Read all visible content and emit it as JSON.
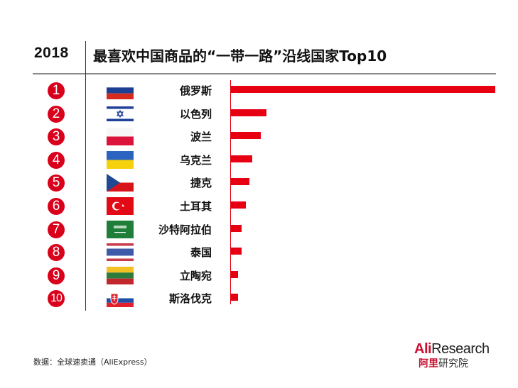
{
  "header": {
    "year": "2018",
    "title": "最喜欢中国商品的“一带一路”沿线国家Top10"
  },
  "rows": [
    {
      "rank": "1",
      "country": "俄罗斯",
      "flag": "russia-flag-icon"
    },
    {
      "rank": "2",
      "country": "以色列",
      "flag": "israel-flag-icon"
    },
    {
      "rank": "3",
      "country": "波兰",
      "flag": "poland-flag-icon"
    },
    {
      "rank": "4",
      "country": "乌克兰",
      "flag": "ukraine-flag-icon"
    },
    {
      "rank": "5",
      "country": "捷克",
      "flag": "czech-flag-icon"
    },
    {
      "rank": "6",
      "country": "土耳其",
      "flag": "turkey-flag-icon"
    },
    {
      "rank": "7",
      "country": "沙特阿拉伯",
      "flag": "saudi-arabia-flag-icon"
    },
    {
      "rank": "8",
      "country": "泰国",
      "flag": "thailand-flag-icon"
    },
    {
      "rank": "9",
      "country": "立陶宛",
      "flag": "lithuania-flag-icon"
    },
    {
      "rank": "10",
      "country": "斯洛伐克",
      "flag": "slovakia-flag-icon"
    }
  ],
  "footer": {
    "source": "数据：全球速卖通（AliExpress）",
    "logo_ali": "Ali",
    "logo_research": "Research",
    "logo_cn_red": "阿里",
    "logo_cn_gray": "研究院"
  },
  "colors": {
    "bar": "#e60012",
    "rank_circle": "#d9001b",
    "rule": "#8a8a8a"
  },
  "chart_data": {
    "type": "bar",
    "orientation": "horizontal",
    "title": "2018 最喜欢中国商品的“一带一路”沿线国家Top10",
    "categories": [
      "俄罗斯",
      "以色列",
      "波兰",
      "乌克兰",
      "捷克",
      "土耳其",
      "沙特阿拉伯",
      "泰国",
      "立陶宛",
      "斯洛伐克"
    ],
    "values": [
      100,
      14,
      11.5,
      8.5,
      7.3,
      6,
      4.3,
      4.3,
      3,
      3
    ],
    "value_note": "relative bar length, % of top bar (no axis values shown)",
    "xlabel": "",
    "ylabel": "",
    "grid": false,
    "legend": null,
    "source": "数据：全球速卖通（AliExpress）"
  }
}
